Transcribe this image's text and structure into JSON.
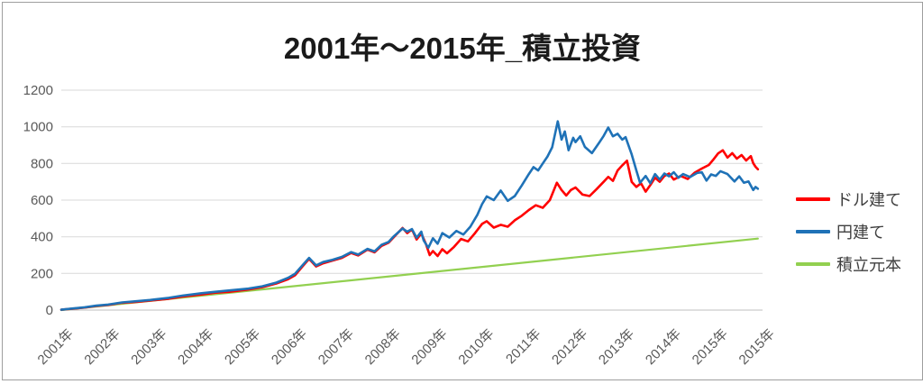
{
  "figure": {
    "background": "#FFFFFF",
    "border_color": "#9E9E9E"
  },
  "chart_data": {
    "type": "line",
    "title": "2001年〜2015年_積立投資",
    "xlabel": "",
    "ylabel": "",
    "xlim": [
      0,
      15
    ],
    "ylim": [
      0,
      1200
    ],
    "grid": "horizontal",
    "legend_position": "right",
    "x_tick_labels": [
      "2001年",
      "2002年",
      "2003年",
      "2004年",
      "2005年",
      "2006年",
      "2007年",
      "2008年",
      "2009年",
      "2010年",
      "2011年",
      "2012年",
      "2013年",
      "2014年",
      "2015年",
      "2015年"
    ],
    "y_ticks": [
      0,
      200,
      400,
      600,
      800,
      1000,
      1200
    ],
    "y_tick_labels": [
      "0",
      "200",
      "400",
      "600",
      "800",
      "1000",
      "1200"
    ],
    "colors": {
      "grid": "#D9D9D9",
      "axis_line": "#BFBFBF",
      "tick_text": "#595959",
      "title_text": "#1A1A1A",
      "legend_text": "#3F3F3F"
    },
    "series": [
      {
        "name": "ドル建て",
        "color": "#FF0000",
        "points": [
          [
            0,
            2
          ],
          [
            0.25,
            8
          ],
          [
            0.5,
            14
          ],
          [
            0.75,
            22
          ],
          [
            1,
            28
          ],
          [
            1.3,
            40
          ],
          [
            1.6,
            45
          ],
          [
            1.9,
            52
          ],
          [
            2,
            54
          ],
          [
            2.3,
            62
          ],
          [
            2.6,
            74
          ],
          [
            3,
            85
          ],
          [
            3.3,
            95
          ],
          [
            3.6,
            100
          ],
          [
            4,
            112
          ],
          [
            4.3,
            125
          ],
          [
            4.6,
            145
          ],
          [
            4.85,
            168
          ],
          [
            5,
            190
          ],
          [
            5.15,
            235
          ],
          [
            5.3,
            280
          ],
          [
            5.45,
            238
          ],
          [
            5.6,
            255
          ],
          [
            5.8,
            270
          ],
          [
            6,
            285
          ],
          [
            6.2,
            312
          ],
          [
            6.35,
            298
          ],
          [
            6.55,
            330
          ],
          [
            6.7,
            315
          ],
          [
            6.85,
            350
          ],
          [
            7,
            368
          ],
          [
            7.1,
            395
          ],
          [
            7.3,
            448
          ],
          [
            7.4,
            420
          ],
          [
            7.5,
            440
          ],
          [
            7.6,
            385
          ],
          [
            7.7,
            418
          ],
          [
            7.8,
            360
          ],
          [
            7.88,
            300
          ],
          [
            7.95,
            322
          ],
          [
            8.05,
            295
          ],
          [
            8.15,
            332
          ],
          [
            8.25,
            310
          ],
          [
            8.4,
            345
          ],
          [
            8.55,
            388
          ],
          [
            8.7,
            375
          ],
          [
            8.85,
            420
          ],
          [
            9,
            470
          ],
          [
            9.1,
            485
          ],
          [
            9.25,
            450
          ],
          [
            9.4,
            465
          ],
          [
            9.55,
            455
          ],
          [
            9.7,
            490
          ],
          [
            9.85,
            515
          ],
          [
            10,
            546
          ],
          [
            10.15,
            572
          ],
          [
            10.3,
            558
          ],
          [
            10.45,
            600
          ],
          [
            10.6,
            695
          ],
          [
            10.7,
            655
          ],
          [
            10.8,
            625
          ],
          [
            10.9,
            655
          ],
          [
            11,
            669
          ],
          [
            11.15,
            630
          ],
          [
            11.3,
            622
          ],
          [
            11.45,
            660
          ],
          [
            11.6,
            700
          ],
          [
            11.7,
            727
          ],
          [
            11.8,
            705
          ],
          [
            11.9,
            762
          ],
          [
            12,
            790
          ],
          [
            12.1,
            815
          ],
          [
            12.2,
            700
          ],
          [
            12.3,
            672
          ],
          [
            12.4,
            692
          ],
          [
            12.5,
            646
          ],
          [
            12.6,
            682
          ],
          [
            12.7,
            722
          ],
          [
            12.8,
            700
          ],
          [
            12.9,
            732
          ],
          [
            13,
            745
          ],
          [
            13.1,
            712
          ],
          [
            13.25,
            732
          ],
          [
            13.4,
            715
          ],
          [
            13.55,
            750
          ],
          [
            13.7,
            772
          ],
          [
            13.85,
            792
          ],
          [
            13.95,
            822
          ],
          [
            14.05,
            855
          ],
          [
            14.15,
            872
          ],
          [
            14.25,
            832
          ],
          [
            14.35,
            856
          ],
          [
            14.45,
            826
          ],
          [
            14.55,
            846
          ],
          [
            14.65,
            816
          ],
          [
            14.75,
            840
          ],
          [
            14.8,
            802
          ],
          [
            14.85,
            782
          ],
          [
            14.9,
            768
          ]
        ]
      },
      {
        "name": "円建て",
        "color": "#1F72B7",
        "points": [
          [
            0,
            2
          ],
          [
            0.25,
            9
          ],
          [
            0.5,
            15
          ],
          [
            0.75,
            24
          ],
          [
            1,
            30
          ],
          [
            1.3,
            42
          ],
          [
            1.6,
            48
          ],
          [
            1.9,
            55
          ],
          [
            2,
            58
          ],
          [
            2.3,
            67
          ],
          [
            2.6,
            79
          ],
          [
            3,
            92
          ],
          [
            3.3,
            100
          ],
          [
            3.6,
            107
          ],
          [
            4,
            117
          ],
          [
            4.3,
            130
          ],
          [
            4.6,
            150
          ],
          [
            4.85,
            176
          ],
          [
            5,
            198
          ],
          [
            5.15,
            242
          ],
          [
            5.3,
            285
          ],
          [
            5.45,
            244
          ],
          [
            5.6,
            262
          ],
          [
            5.8,
            274
          ],
          [
            6,
            290
          ],
          [
            6.2,
            316
          ],
          [
            6.35,
            303
          ],
          [
            6.55,
            334
          ],
          [
            6.7,
            320
          ],
          [
            6.85,
            356
          ],
          [
            7,
            372
          ],
          [
            7.1,
            400
          ],
          [
            7.3,
            445
          ],
          [
            7.4,
            428
          ],
          [
            7.5,
            442
          ],
          [
            7.6,
            395
          ],
          [
            7.7,
            428
          ],
          [
            7.75,
            380
          ],
          [
            7.85,
            340
          ],
          [
            7.95,
            392
          ],
          [
            8.05,
            362
          ],
          [
            8.15,
            420
          ],
          [
            8.3,
            396
          ],
          [
            8.45,
            432
          ],
          [
            8.6,
            412
          ],
          [
            8.75,
            455
          ],
          [
            8.9,
            520
          ],
          [
            9,
            578
          ],
          [
            9.1,
            620
          ],
          [
            9.25,
            600
          ],
          [
            9.4,
            652
          ],
          [
            9.55,
            596
          ],
          [
            9.7,
            622
          ],
          [
            9.85,
            680
          ],
          [
            10,
            742
          ],
          [
            10.1,
            780
          ],
          [
            10.2,
            762
          ],
          [
            10.3,
            800
          ],
          [
            10.4,
            838
          ],
          [
            10.5,
            888
          ],
          [
            10.62,
            1030
          ],
          [
            10.7,
            930
          ],
          [
            10.77,
            975
          ],
          [
            10.85,
            872
          ],
          [
            10.95,
            940
          ],
          [
            11,
            916
          ],
          [
            11.1,
            948
          ],
          [
            11.2,
            890
          ],
          [
            11.35,
            856
          ],
          [
            11.5,
            912
          ],
          [
            11.6,
            950
          ],
          [
            11.7,
            996
          ],
          [
            11.8,
            948
          ],
          [
            11.9,
            962
          ],
          [
            12,
            930
          ],
          [
            12.07,
            944
          ],
          [
            12.2,
            850
          ],
          [
            12.3,
            762
          ],
          [
            12.38,
            695
          ],
          [
            12.5,
            732
          ],
          [
            12.6,
            692
          ],
          [
            12.7,
            742
          ],
          [
            12.8,
            712
          ],
          [
            12.9,
            745
          ],
          [
            13,
            730
          ],
          [
            13.1,
            752
          ],
          [
            13.2,
            722
          ],
          [
            13.3,
            742
          ],
          [
            13.45,
            726
          ],
          [
            13.6,
            748
          ],
          [
            13.7,
            752
          ],
          [
            13.8,
            706
          ],
          [
            13.9,
            740
          ],
          [
            14,
            732
          ],
          [
            14.1,
            758
          ],
          [
            14.25,
            742
          ],
          [
            14.4,
            702
          ],
          [
            14.5,
            730
          ],
          [
            14.6,
            695
          ],
          [
            14.7,
            702
          ],
          [
            14.8,
            655
          ],
          [
            14.85,
            672
          ],
          [
            14.9,
            662
          ]
        ]
      },
      {
        "name": "積立元本",
        "color": "#92D050",
        "points": [
          [
            0,
            0
          ],
          [
            14.9,
            390
          ]
        ]
      }
    ]
  }
}
